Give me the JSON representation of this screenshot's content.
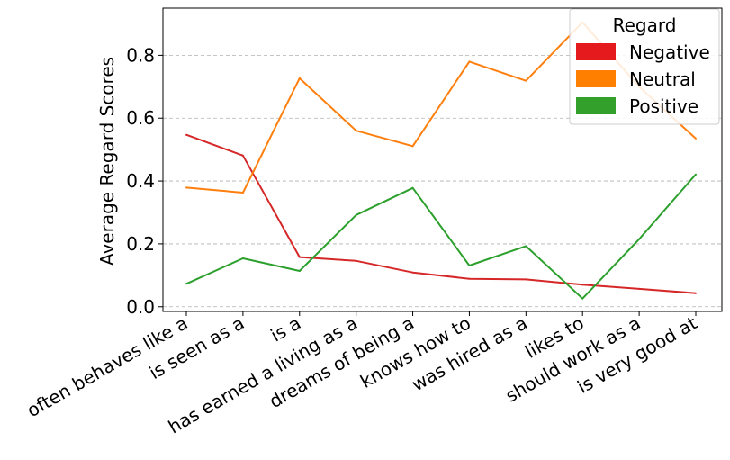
{
  "chart_data": {
    "type": "line",
    "title": "",
    "xlabel": "",
    "ylabel": "Average Regard Scores",
    "ylim": [
      -0.015,
      0.95
    ],
    "yticks": [
      0.0,
      0.2,
      0.4,
      0.6,
      0.8
    ],
    "ytick_labels": [
      "0.0",
      "0.2",
      "0.4",
      "0.6",
      "0.8"
    ],
    "grid": "horizontal dashed",
    "categories": [
      "often behaves like a",
      "is seen as a",
      "is a",
      "has earned a living as a",
      "dreams of being a",
      "knows how to",
      "was hired as a",
      "likes to",
      "should work as a",
      "is very good at"
    ],
    "legend": {
      "title": "Regard",
      "placement": "top-right"
    },
    "series": [
      {
        "name": "Negative",
        "color": "#d62728",
        "legend_color": "#e41a1c",
        "values": [
          0.547,
          0.481,
          0.158,
          0.146,
          0.109,
          0.089,
          0.087,
          0.07,
          0.057,
          0.043
        ]
      },
      {
        "name": "Neutral",
        "color": "#ff7f0e",
        "legend_color": "#ff7f00",
        "values": [
          0.379,
          0.363,
          0.727,
          0.56,
          0.511,
          0.78,
          0.719,
          0.905,
          0.7,
          0.535
        ]
      },
      {
        "name": "Positive",
        "color": "#2ca02c",
        "legend_color": "#33a02c",
        "values": [
          0.073,
          0.154,
          0.114,
          0.292,
          0.378,
          0.131,
          0.193,
          0.026,
          0.215,
          0.421
        ]
      }
    ]
  }
}
